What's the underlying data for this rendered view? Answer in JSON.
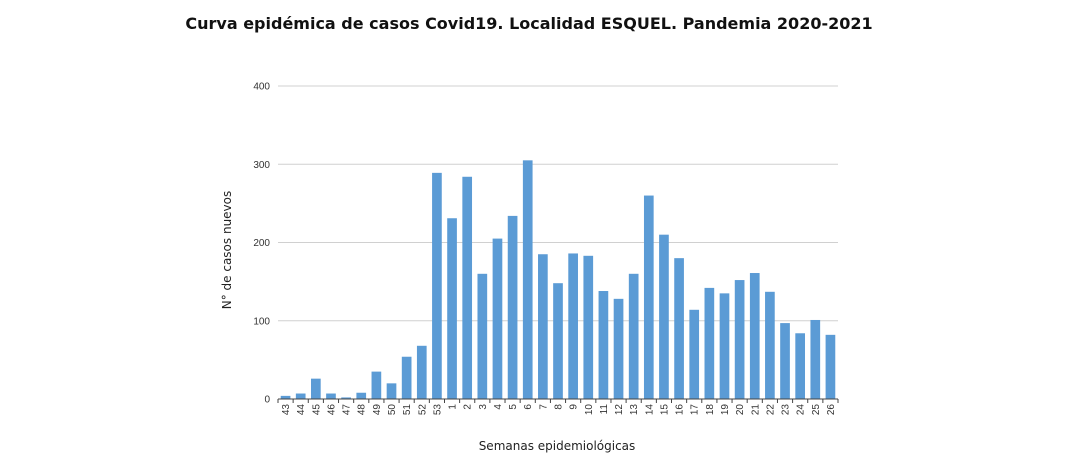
{
  "chart_data": {
    "type": "bar",
    "title": "Curva epidémica de casos Covid19. Localidad ESQUEL.  Pandemia 2020-2021",
    "xlabel": "Semanas epidemiológicas",
    "ylabel": "N° de casos nuevos",
    "ylim": [
      0,
      400
    ],
    "yticks": [
      0,
      100,
      200,
      300,
      400
    ],
    "grid": true,
    "color": "#5b9bd5",
    "categories": [
      "43",
      "44",
      "45",
      "46",
      "47",
      "48",
      "49",
      "50",
      "51",
      "52",
      "53",
      "1",
      "2",
      "3",
      "4",
      "5",
      "6",
      "7",
      "8",
      "9",
      "10",
      "11",
      "12",
      "13",
      "14",
      "15",
      "16",
      "17",
      "18",
      "19",
      "20",
      "21",
      "22",
      "23",
      "24",
      "25",
      "26"
    ],
    "values": [
      4,
      7,
      26,
      7,
      2,
      8,
      35,
      20,
      54,
      68,
      289,
      231,
      284,
      160,
      205,
      234,
      305,
      185,
      148,
      186,
      183,
      138,
      128,
      160,
      260,
      210,
      180,
      114,
      142,
      135,
      152,
      161,
      137,
      97,
      84,
      101,
      82
    ]
  }
}
